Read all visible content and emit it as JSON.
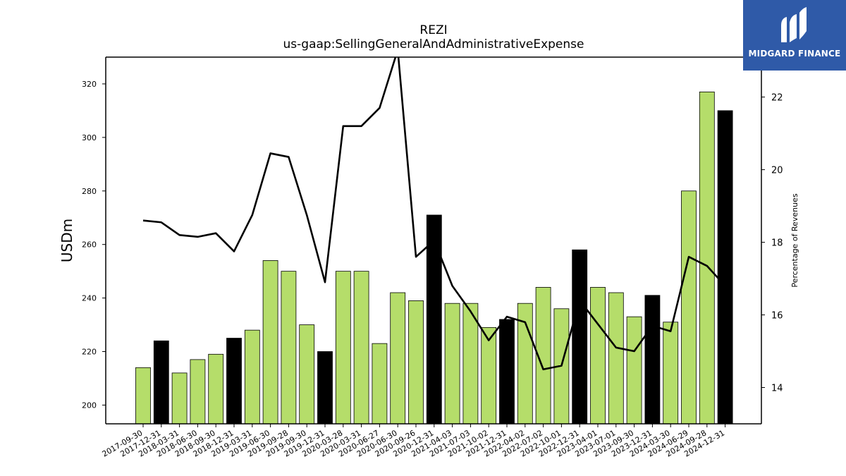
{
  "chart_data": {
    "type": "bar",
    "title": "REZI",
    "subtitle": "us-gaap:SellingGeneralAndAdministrativeExpense",
    "ylabel": "USDm",
    "y2label": "Percentage of Revenues",
    "ylim": [
      193,
      330
    ],
    "y2lim": [
      13,
      23.1
    ],
    "yticks": [
      200,
      220,
      240,
      260,
      280,
      300,
      320
    ],
    "y2ticks": [
      14,
      16,
      18,
      20,
      22
    ],
    "colors": {
      "quarter_bar": "#b5dd6a",
      "year_end_bar": "#000000",
      "line": "#000000",
      "edge": "#000000"
    },
    "categories": [
      "2017-09-30",
      "2017-12-31",
      "2018-03-31",
      "2018-06-30",
      "2018-09-30",
      "2018-12-31",
      "2019-03-31",
      "2019-06-30",
      "2019-09-28",
      "2019-09-30",
      "2019-12-31",
      "2020-03-28",
      "2020-03-31",
      "2020-06-27",
      "2020-06-30",
      "2020-09-26",
      "2020-12-31",
      "2021-04-03",
      "2021-07-03",
      "2021-10-02",
      "2021-12-31",
      "2022-04-02",
      "2022-07-02",
      "2022-10-01",
      "2022-12-31",
      "2023-04-01",
      "2023-07-01",
      "2023-09-30",
      "2023-12-31",
      "2024-03-30",
      "2024-06-29",
      "2024-09-28",
      "2024-12-31"
    ],
    "series": [
      {
        "name": "",
        "type": "bar",
        "axis": "left",
        "values": [
          214,
          224,
          212,
          217,
          219,
          225,
          228,
          254,
          250,
          230,
          220,
          250,
          250,
          223,
          242,
          239,
          271,
          238,
          238,
          229,
          232,
          238,
          244,
          236,
          258,
          244,
          242,
          233,
          241,
          231,
          280,
          317,
          310
        ],
        "year_end": [
          false,
          true,
          false,
          false,
          false,
          true,
          false,
          false,
          false,
          false,
          true,
          false,
          false,
          false,
          false,
          false,
          true,
          false,
          false,
          false,
          true,
          false,
          false,
          false,
          true,
          false,
          false,
          false,
          true,
          false,
          false,
          false,
          true
        ]
      },
      {
        "name": "",
        "type": "line",
        "axis": "right",
        "values": [
          18.6,
          18.55,
          18.2,
          18.15,
          18.25,
          17.75,
          18.75,
          20.45,
          20.35,
          18.75,
          16.9,
          21.2,
          21.2,
          21.7,
          23.3,
          17.6,
          18.05,
          16.8,
          16.1,
          15.3,
          15.95,
          15.8,
          14.5,
          14.6,
          16.4,
          15.75,
          15.1,
          15.0,
          15.7,
          15.55,
          17.6,
          17.35,
          16.8
        ]
      }
    ],
    "grid": false,
    "legend": "none"
  },
  "logo": {
    "text": "MIDGARD FINANCE"
  }
}
